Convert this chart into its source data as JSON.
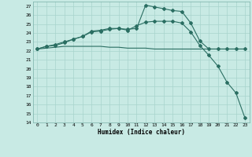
{
  "xlabel": "Humidex (Indice chaleur)",
  "x_ticks": [
    0,
    1,
    2,
    3,
    4,
    5,
    6,
    7,
    8,
    9,
    10,
    11,
    12,
    13,
    14,
    15,
    16,
    17,
    18,
    19,
    20,
    21,
    22,
    23
  ],
  "ylim": [
    14,
    27.5
  ],
  "xlim": [
    -0.5,
    23.5
  ],
  "y_ticks": [
    14,
    15,
    16,
    17,
    18,
    19,
    20,
    21,
    22,
    23,
    24,
    25,
    26,
    27
  ],
  "bg_color": "#c8eae4",
  "grid_color": "#a8d4cc",
  "line_color": "#2a6e62",
  "line1_x": [
    0,
    1,
    2,
    3,
    4,
    5,
    6,
    7,
    8,
    9,
    10,
    11,
    12,
    13,
    14,
    15,
    16,
    17,
    18,
    19,
    20,
    21,
    22,
    23
  ],
  "line1_y": [
    22.2,
    22.5,
    22.6,
    22.9,
    23.3,
    23.6,
    24.2,
    24.3,
    24.5,
    24.5,
    24.4,
    24.5,
    27.1,
    26.9,
    26.7,
    26.5,
    26.4,
    25.1,
    23.1,
    22.2,
    22.2,
    22.2,
    22.2,
    22.2
  ],
  "line2_x": [
    0,
    1,
    2,
    3,
    4,
    5,
    6,
    7,
    8,
    9,
    10,
    11,
    12,
    13,
    14,
    15,
    16,
    17,
    18,
    19,
    20,
    21,
    22,
    23
  ],
  "line2_y": [
    22.2,
    22.5,
    22.7,
    23.0,
    23.3,
    23.6,
    24.1,
    24.2,
    24.4,
    24.5,
    24.3,
    24.8,
    25.2,
    25.3,
    25.3,
    25.3,
    25.1,
    24.1,
    22.6,
    21.5,
    20.3,
    18.5,
    17.3,
    14.5
  ],
  "line3_x": [
    0,
    1,
    2,
    3,
    4,
    5,
    6,
    7,
    8,
    9,
    10,
    11,
    12,
    13,
    14,
    15,
    16,
    17,
    18,
    19,
    20,
    21,
    22,
    23
  ],
  "line3_y": [
    22.2,
    22.3,
    22.4,
    22.5,
    22.5,
    22.5,
    22.5,
    22.5,
    22.4,
    22.4,
    22.3,
    22.3,
    22.3,
    22.2,
    22.2,
    22.2,
    22.2,
    22.2,
    22.2,
    22.2,
    22.2,
    22.2,
    22.2,
    22.2
  ]
}
